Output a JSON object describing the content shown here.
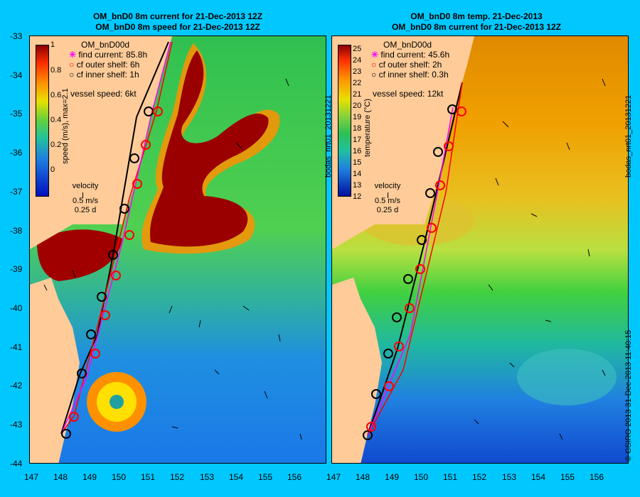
{
  "left_panel": {
    "title_line1": "OM_bnD0 8m current for 21-Dec-2013 12Z",
    "title_line2": "OM_bnD0 8m speed for 21-Dec-2013 12Z",
    "model_label": "OM_bnD00d",
    "legend": {
      "find_current": "find current: 85.8h",
      "cf_outer": "cf outer shelf: 6h",
      "cf_inner": "cf inner shelf: 1h"
    },
    "vessel_speed": "vessel speed: 6kt",
    "colorbar_label": "speed (m/s), max=2.1",
    "colorbar_ticks": [
      "1",
      "0.8",
      "0.6",
      "0.4",
      "0.2",
      "0"
    ],
    "velocity_label": "velocity",
    "velocity_scale": "0.5 m/s",
    "velocity_time": "0.25 d"
  },
  "right_panel": {
    "title_line1": "OM_bnD0 8m temp. 21-Dec-2013",
    "title_line2": "OM_bnD0 8m current for 21-Dec-2013 12Z",
    "model_label": "OM_bnD00d",
    "legend": {
      "find_current": "find current: 45.6h",
      "cf_outer": "cf outer shelf: 2h",
      "cf_inner": "cf inner shelf: 0.3h"
    },
    "vessel_speed": "vessel speed: 12kt",
    "colorbar_label": "temperature (°C)",
    "colorbar_ticks": [
      "25",
      "24",
      "23",
      "22",
      "21",
      "20",
      "19",
      "18",
      "17",
      "16",
      "15",
      "14",
      "13",
      "12"
    ],
    "velocity_label": "velocity",
    "velocity_scale": "0.5 m/s",
    "velocity_time": "0.25 d"
  },
  "y_ticks": [
    "-33",
    "-34",
    "-35",
    "-36",
    "-37",
    "-38",
    "-39",
    "-40",
    "-41",
    "-42",
    "-43",
    "-44"
  ],
  "x_ticks": [
    "147",
    "148",
    "149",
    "150",
    "151",
    "152",
    "153",
    "154",
    "155",
    "156"
  ],
  "side_label_left": "bodas_nrt01_20131221",
  "side_label_right": "bodas_nrt01_20131221",
  "footer_label": "© CSIRO 2013   31-Dec-2013 11:40:15",
  "colors": {
    "background": "#00c8ff",
    "land": "#ffcc99",
    "find_current": "#ff00ff",
    "outer_shelf": "#ff0000",
    "inner_shelf": "#000000"
  }
}
